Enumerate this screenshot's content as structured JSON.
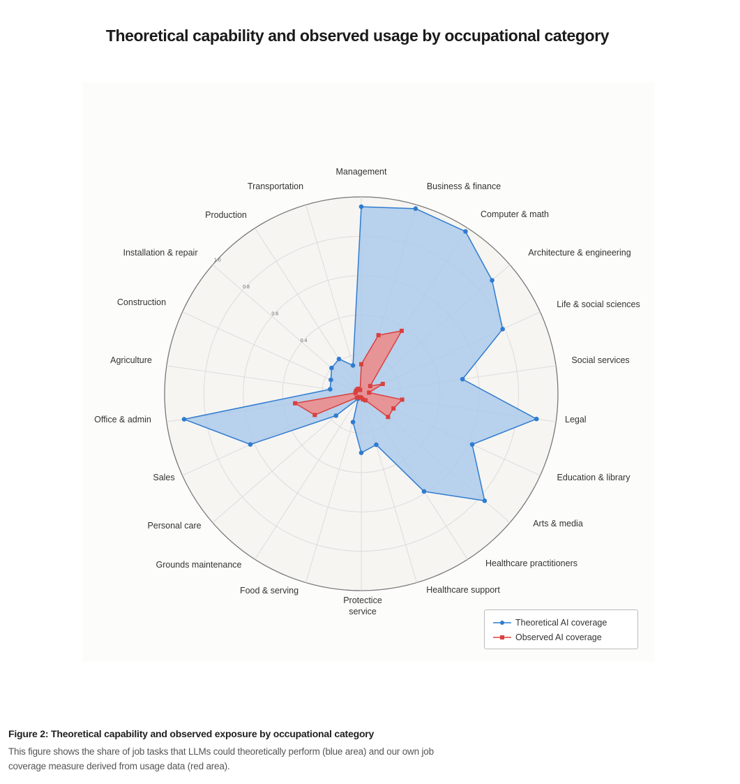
{
  "title": "Theoretical capability and observed usage by occupational category",
  "caption": {
    "title": "Figure 2: Theoretical capability and observed exposure by occupational category",
    "text": "This figure shows the share of job tasks that LLMs could theoretically perform (blue area) and our own job coverage measure derived from usage data (red area)."
  },
  "chart_data": {
    "type": "radar",
    "title": "Theoretical capability and observed usage by occupational category",
    "categories": [
      "Management",
      "Business & finance",
      "Computer & math",
      "Architecture & engineering",
      "Life & social sciences",
      "Social services",
      "Legal",
      "Education & library",
      "Arts & media",
      "Healthcare practitioners",
      "Healthcare support",
      "Protectice service",
      "Food & serving",
      "Grounds maintenance",
      "Personal care",
      "Sales",
      "Office & admin",
      "Agriculture",
      "Construction",
      "Installation & repair",
      "Production",
      "Transportation"
    ],
    "radial_ticks": [
      "0.4",
      "0.6",
      "0.8",
      "1.0"
    ],
    "rlim": [
      0,
      1.0
    ],
    "grid": true,
    "legend_position": "bottom-right",
    "series": [
      {
        "name": "Theoretical AI coverage",
        "color": "#2f7bd0",
        "fill": "#a9c8ea",
        "marker": "circle",
        "values": [
          0.95,
          0.98,
          0.98,
          0.88,
          0.79,
          0.52,
          0.9,
          0.62,
          0.83,
          0.59,
          0.27,
          0.3,
          0.15,
          0.03,
          0.17,
          0.62,
          0.91,
          0.16,
          0.17,
          0.2,
          0.21,
          0.15
        ]
      },
      {
        "name": "Observed AI coverage",
        "color": "#d9403f",
        "fill": "#ef8a88",
        "marker": "square",
        "values": [
          0.15,
          0.31,
          0.38,
          0.06,
          0.12,
          0.04,
          0.21,
          0.18,
          0.18,
          0.04,
          0.03,
          0.02,
          0.02,
          0.02,
          0.03,
          0.26,
          0.34,
          0.03,
          0.03,
          0.03,
          0.03,
          0.02
        ]
      }
    ]
  }
}
